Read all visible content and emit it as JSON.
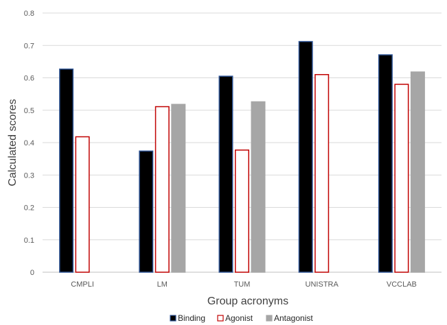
{
  "chart_data": {
    "type": "bar",
    "xlabel": "Group acronyms",
    "ylabel": "Calculated scores",
    "ylim": [
      0,
      0.8
    ],
    "yticks": [
      "0",
      "0.1",
      "0.2",
      "0.3",
      "0.4",
      "0.5",
      "0.6",
      "0.7",
      "0.8"
    ],
    "grid": true,
    "legend_position": "bottom",
    "categories": [
      "CMPLI",
      "LM",
      "TUM",
      "UNISTRA",
      "VCCLAB"
    ],
    "series": [
      {
        "name": "Binding",
        "values": [
          0.627,
          0.374,
          0.605,
          0.712,
          0.671
        ],
        "fill": "#000000",
        "stroke": "#2f5597"
      },
      {
        "name": "Agonist",
        "values": [
          0.418,
          0.511,
          0.377,
          0.61,
          0.58
        ],
        "fill": "#ffffff",
        "stroke": "#c00000"
      },
      {
        "name": "Antagonist",
        "values": [
          null,
          0.518,
          0.526,
          null,
          0.618
        ],
        "fill": "#a6a6a6",
        "stroke": "#a6a6a6"
      }
    ]
  }
}
